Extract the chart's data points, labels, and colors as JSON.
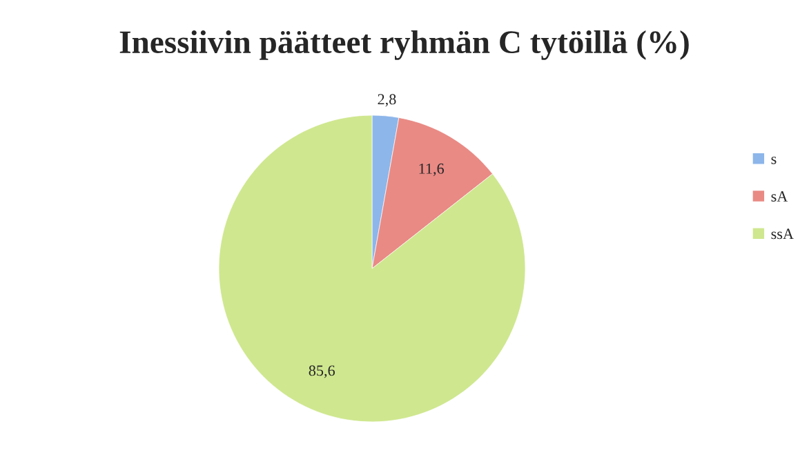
{
  "chart_data": {
    "type": "pie",
    "title": "Inessiivin päätteet ryhmän C tytöillä (%)",
    "categories": [
      "s",
      "sA",
      "ssA"
    ],
    "values": [
      2.8,
      11.6,
      85.6
    ],
    "value_labels": [
      "2,8",
      "11,6",
      "85,6"
    ],
    "colors": [
      "#8db6ea",
      "#e98a85",
      "#cfe78f"
    ],
    "legend": "right"
  }
}
